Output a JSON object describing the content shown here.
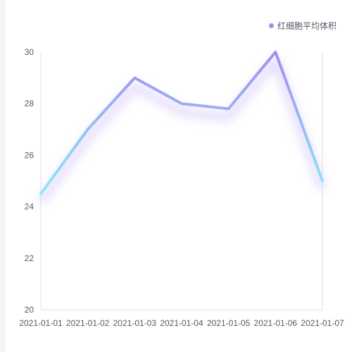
{
  "chart_data": {
    "type": "line",
    "title": "",
    "xlabel": "",
    "ylabel": "",
    "categories": [
      "2021-01-01",
      "2021-01-02",
      "2021-01-03",
      "2021-01-04",
      "2021-01-05",
      "2021-01-06",
      "2021-01-07"
    ],
    "series": [
      {
        "name": "红细胞平均体积",
        "values": [
          24.5,
          27.0,
          29.0,
          28.0,
          27.8,
          30.0,
          25.0
        ]
      }
    ],
    "ylim": [
      20,
      30
    ],
    "yticks": [
      "20",
      "22",
      "24",
      "26",
      "28",
      "30"
    ],
    "grid": false,
    "legend_position": "top-right",
    "colors": {
      "line_top": "#a48cf2",
      "line_bottom": "#8ee9fb",
      "legend_marker": "#a48cf2",
      "axis": "#e0e0e6",
      "text": "#555a66"
    }
  }
}
